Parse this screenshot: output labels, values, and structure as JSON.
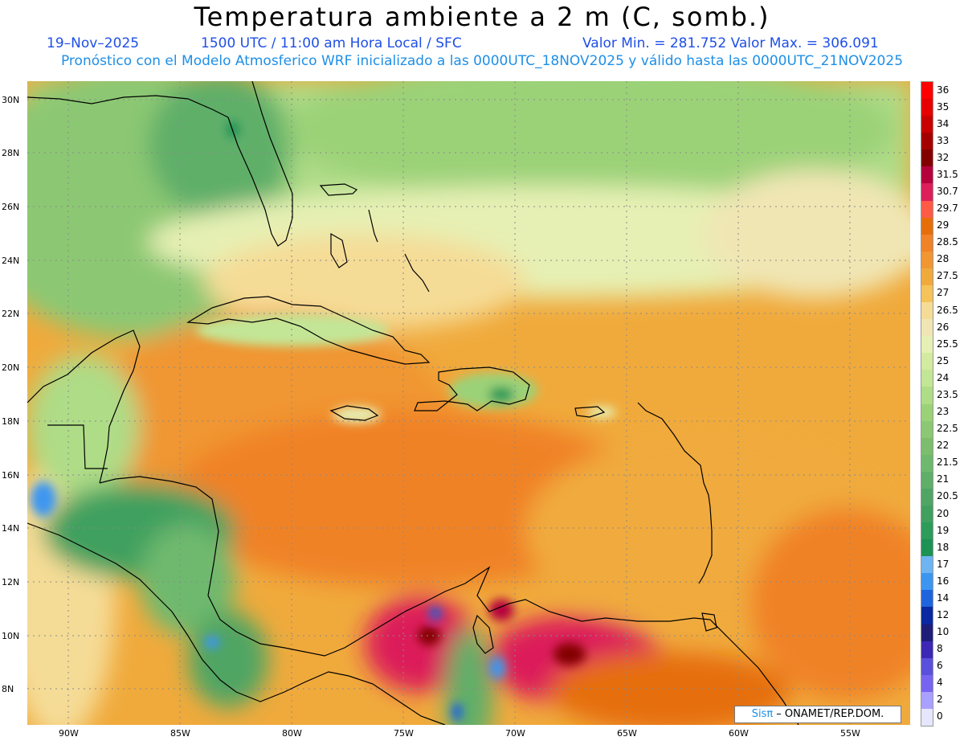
{
  "title": "Temperatura ambiente a 2 m (C, somb.)",
  "subtitle": {
    "date": "19–Nov–2025",
    "time": "1500 UTC / 11:00 am Hora Local / SFC",
    "min_max": "Valor Min. = 281.752   Valor Max. = 306.091",
    "model_info": "Pronóstico con el Modelo Atmosferico WRF inicializado a las 0000UTC_18NOV2025 y válido hasta las   0000UTC_21NOV2025"
  },
  "lat_labels": [
    "30N",
    "28N",
    "26N",
    "24N",
    "22N",
    "20N",
    "18N",
    "16N",
    "14N",
    "12N",
    "10N",
    "8N"
  ],
  "lon_labels": [
    "90W",
    "85W",
    "80W",
    "75W",
    "70W",
    "65W",
    "60W",
    "55W"
  ],
  "legend": {
    "labels": [
      "36",
      "35",
      "34",
      "33",
      "32",
      "31.5",
      "30.7",
      "29.7",
      "29",
      "28.5",
      "28",
      "27.5",
      "27",
      "26.5",
      "26",
      "25.5",
      "25",
      "24",
      "23.5",
      "23",
      "22.5",
      "22",
      "21.5",
      "21",
      "20.5",
      "20",
      "19",
      "18",
      "17",
      "16",
      "14",
      "12",
      "10",
      "8",
      "6",
      "4",
      "2",
      "0"
    ],
    "colors": [
      "#ff0000",
      "#e60000",
      "#c80000",
      "#a50000",
      "#820000",
      "#b4003c",
      "#dc1e5a",
      "#ff5a46",
      "#e66e0a",
      "#f08228",
      "#f09632",
      "#f0aa3c",
      "#f5c35a",
      "#f5dc96",
      "#f0e6b4",
      "#e6f0b4",
      "#d2eba0",
      "#c3e696",
      "#afdc87",
      "#9bd278",
      "#8cc873",
      "#7dbe6e",
      "#6eb96e",
      "#5faf69",
      "#50a564",
      "#41a05f",
      "#2d9b5a",
      "#1e9155",
      "#6eb4f0",
      "#3c96f0",
      "#1e64dc",
      "#0a28a0",
      "#1e1e78",
      "#3c28b4",
      "#5a50dc",
      "#7864f0",
      "#aaa0ff",
      "#e6e6ff"
    ]
  },
  "credit": {
    "brand": "Sisπ",
    "text": " – ONAMET/REP.DOM."
  },
  "map_regions": [
    "gulf-of-mexico",
    "florida",
    "bahamas",
    "cuba",
    "hispaniola",
    "jamaica",
    "puerto-rico",
    "lesser-antilles",
    "central-america",
    "colombia",
    "venezuela",
    "caribbean-sea",
    "atlantic-ocean"
  ]
}
